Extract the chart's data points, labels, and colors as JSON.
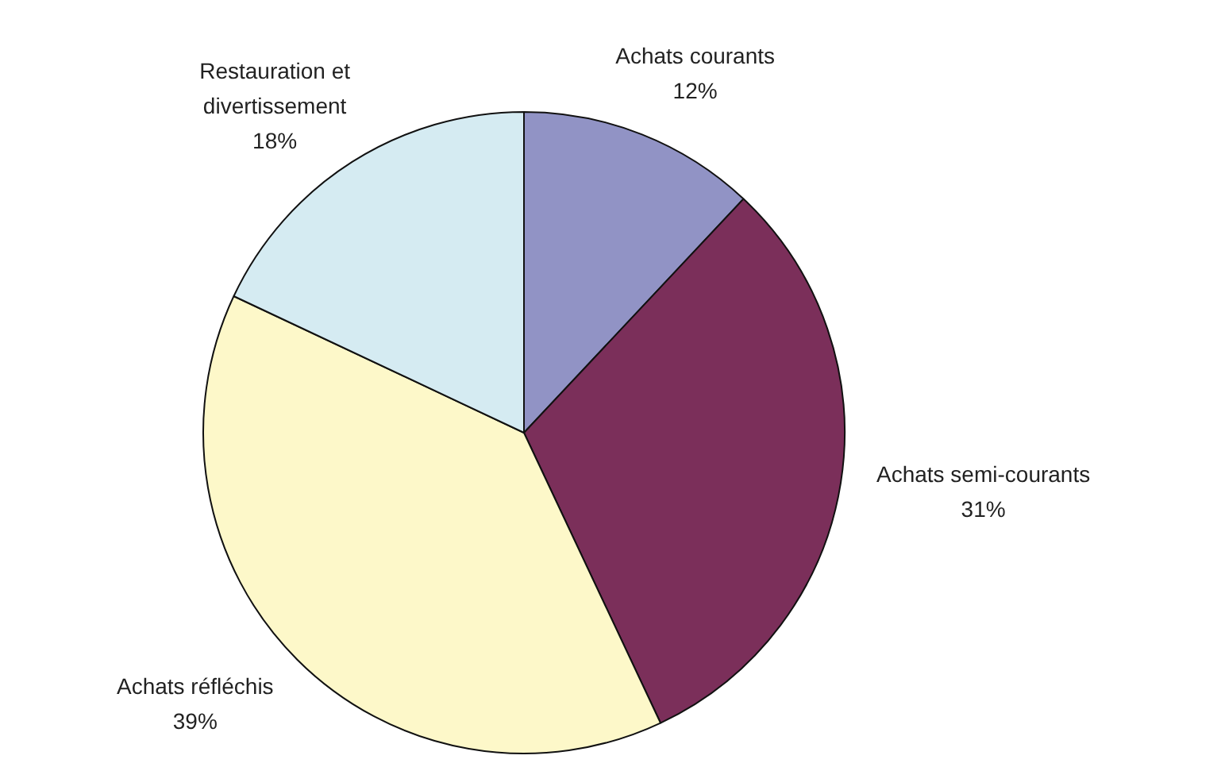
{
  "chart_data": {
    "type": "pie",
    "categories": [
      "Achats courants",
      "Achats semi-courants",
      "Achats réfléchis",
      "Restauration et divertissement"
    ],
    "values": [
      12,
      31,
      39,
      18
    ],
    "value_labels": [
      "12%",
      "31%",
      "39%",
      "18%"
    ],
    "colors": [
      "#9193c5",
      "#7b2f5a",
      "#fdf8c9",
      "#d5ebf2"
    ],
    "legend": false
  }
}
